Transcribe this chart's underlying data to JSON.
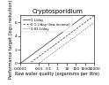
{
  "title": "Cryptosporidium",
  "xlabel": "Raw water quality (organisms per litre)",
  "ylabel": "Performance target (log₁₀ reduction)",
  "xmin": 0.0001,
  "xmax": 10000,
  "ymin": 0,
  "ymax": 7,
  "yticks": [
    0,
    2,
    4,
    6
  ],
  "xticks": [
    0.0001,
    0.01,
    0.1,
    1,
    10,
    100,
    1000,
    10000
  ],
  "xtick_labels": [
    "0.0001",
    "0.01",
    "0.1",
    "1",
    "10",
    "100",
    "1000",
    "10000"
  ],
  "lines": [
    {
      "label": "1 L/day",
      "linestyle": "-",
      "color": "#555555",
      "linewidth": 0.6,
      "consumption": 1.0
    },
    {
      "label": "0.1 L/day (low income)",
      "linestyle": "--",
      "color": "#555555",
      "linewidth": 0.6,
      "consumption": 0.1
    },
    {
      "label": "0.01 L/day",
      "linestyle": ":",
      "color": "#555555",
      "linewidth": 0.6,
      "consumption": 0.01
    }
  ],
  "constant": 4.0,
  "background_color": "#ffffff",
  "title_fontsize": 5,
  "label_fontsize": 3.5,
  "tick_fontsize": 3.2,
  "legend_fontsize": 2.8
}
